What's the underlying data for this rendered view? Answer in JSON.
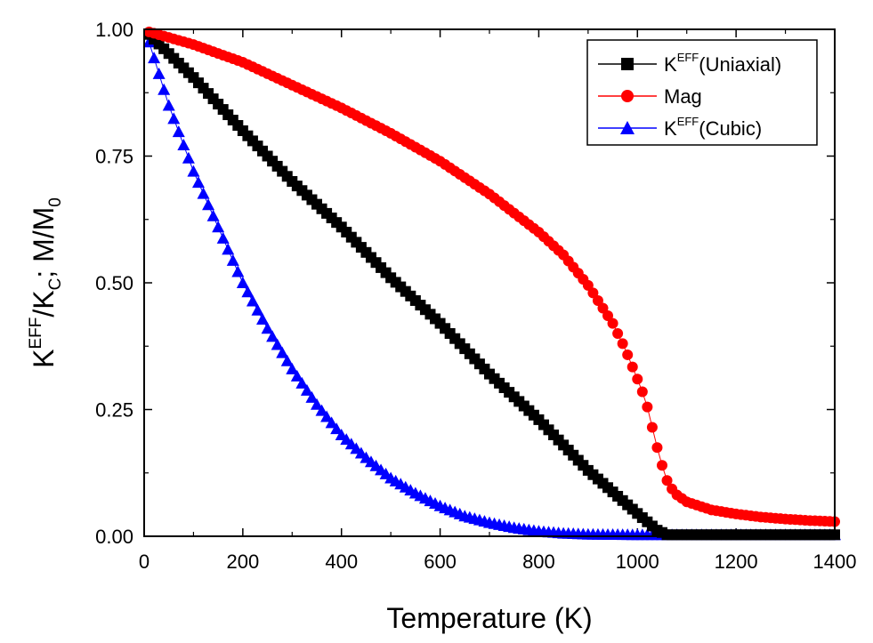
{
  "chart_data": {
    "type": "scatter",
    "title": "",
    "xlabel": "Temperature (K)",
    "ylabel": {
      "k": "K",
      "eff": "EFF",
      "slash": "/K",
      "c": "C",
      "semi": "; M/M",
      "zero": "0"
    },
    "xlim": [
      0,
      1400
    ],
    "ylim": [
      0,
      1.0
    ],
    "xticks": [
      "0",
      "200",
      "400",
      "600",
      "800",
      "1000",
      "1200",
      "1400"
    ],
    "yticks": [
      "0.00",
      "0.25",
      "0.50",
      "0.75",
      "1.00"
    ],
    "legend_position": "top-right",
    "series": [
      {
        "name": "K^EFF(Uniaxial)",
        "legend": {
          "k": "K",
          "sup": "EFF",
          "rest": "(Uniaxial)"
        },
        "marker": "square",
        "color": "#000000",
        "points": [
          [
            10,
            0.99
          ],
          [
            100,
            0.905
          ],
          [
            200,
            0.8
          ],
          [
            300,
            0.7
          ],
          [
            400,
            0.61
          ],
          [
            500,
            0.51
          ],
          [
            600,
            0.42
          ],
          [
            700,
            0.32
          ],
          [
            800,
            0.23
          ],
          [
            900,
            0.13
          ],
          [
            1000,
            0.045
          ],
          [
            1040,
            0.012
          ],
          [
            1060,
            0.003
          ],
          [
            1100,
            0.003
          ],
          [
            1200,
            0.003
          ],
          [
            1300,
            0.003
          ],
          [
            1400,
            0.003
          ]
        ]
      },
      {
        "name": "Mag",
        "legend": {
          "k": "Mag",
          "sup": "",
          "rest": ""
        },
        "marker": "circle",
        "color": "#ff0000",
        "points": [
          [
            10,
            0.995
          ],
          [
            100,
            0.97
          ],
          [
            200,
            0.935
          ],
          [
            300,
            0.89
          ],
          [
            400,
            0.845
          ],
          [
            500,
            0.795
          ],
          [
            600,
            0.74
          ],
          [
            700,
            0.675
          ],
          [
            800,
            0.6
          ],
          [
            850,
            0.555
          ],
          [
            900,
            0.495
          ],
          [
            950,
            0.42
          ],
          [
            975,
            0.37
          ],
          [
            1000,
            0.31
          ],
          [
            1010,
            0.285
          ],
          [
            1020,
            0.255
          ],
          [
            1030,
            0.215
          ],
          [
            1040,
            0.175
          ],
          [
            1050,
            0.14
          ],
          [
            1060,
            0.11
          ],
          [
            1075,
            0.085
          ],
          [
            1100,
            0.068
          ],
          [
            1150,
            0.052
          ],
          [
            1200,
            0.044
          ],
          [
            1250,
            0.038
          ],
          [
            1300,
            0.034
          ],
          [
            1350,
            0.031
          ],
          [
            1400,
            0.029
          ]
        ]
      },
      {
        "name": "K^EFF(Cubic)",
        "legend": {
          "k": "K",
          "sup": "EFF",
          "rest": "(Cubic)"
        },
        "marker": "triangle",
        "color": "#0000ff",
        "points": [
          [
            10,
            0.975
          ],
          [
            50,
            0.85
          ],
          [
            100,
            0.72
          ],
          [
            150,
            0.61
          ],
          [
            200,
            0.5
          ],
          [
            250,
            0.41
          ],
          [
            300,
            0.33
          ],
          [
            350,
            0.26
          ],
          [
            400,
            0.2
          ],
          [
            450,
            0.155
          ],
          [
            500,
            0.115
          ],
          [
            550,
            0.085
          ],
          [
            600,
            0.06
          ],
          [
            650,
            0.04
          ],
          [
            700,
            0.027
          ],
          [
            750,
            0.017
          ],
          [
            800,
            0.01
          ],
          [
            850,
            0.006
          ],
          [
            900,
            0.004
          ],
          [
            1000,
            0.003
          ],
          [
            1100,
            0.003
          ],
          [
            1200,
            0.003
          ],
          [
            1300,
            0.003
          ],
          [
            1400,
            0.003
          ]
        ]
      }
    ]
  }
}
